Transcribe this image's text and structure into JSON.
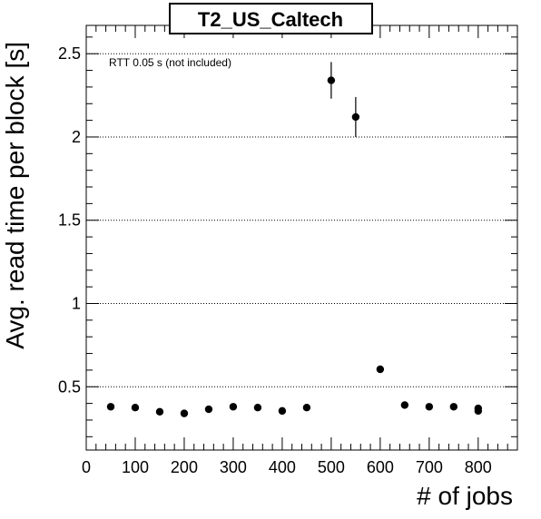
{
  "chart_data": {
    "type": "scatter",
    "title": "T2_US_Caltech",
    "xlabel": "# of jobs",
    "ylabel": "Avg. read time per block [s]",
    "annotation": "RTT 0.05 s (not included)",
    "xlim": [
      0,
      880
    ],
    "ylim": [
      0.12,
      2.67
    ],
    "x_ticks": [
      0,
      100,
      200,
      300,
      400,
      500,
      600,
      700,
      800
    ],
    "x_tick_labels": [
      "0",
      "100",
      "200",
      "300",
      "400",
      "500",
      "600",
      "700",
      "800"
    ],
    "y_ticks": [
      0.5,
      1,
      1.5,
      2,
      2.5
    ],
    "y_tick_labels": [
      "0.5",
      "1",
      "1.5",
      "2",
      "2.5"
    ],
    "grid": {
      "x": false,
      "y": true,
      "style": "dotted"
    },
    "series": [
      {
        "points": [
          {
            "x": 50,
            "y": 0.38,
            "err": 0.0
          },
          {
            "x": 100,
            "y": 0.375,
            "err": 0.0
          },
          {
            "x": 150,
            "y": 0.35,
            "err": 0.0
          },
          {
            "x": 200,
            "y": 0.34,
            "err": 0.0
          },
          {
            "x": 250,
            "y": 0.365,
            "err": 0.0
          },
          {
            "x": 300,
            "y": 0.38,
            "err": 0.0
          },
          {
            "x": 350,
            "y": 0.375,
            "err": 0.0
          },
          {
            "x": 400,
            "y": 0.355,
            "err": 0.0
          },
          {
            "x": 450,
            "y": 0.375,
            "err": 0.0
          },
          {
            "x": 500,
            "y": 2.34,
            "err": 0.11
          },
          {
            "x": 550,
            "y": 2.12,
            "err": 0.12
          },
          {
            "x": 600,
            "y": 0.605,
            "err": 0.0
          },
          {
            "x": 650,
            "y": 0.39,
            "err": 0.0
          },
          {
            "x": 700,
            "y": 0.38,
            "err": 0.0
          },
          {
            "x": 750,
            "y": 0.38,
            "err": 0.0
          },
          {
            "x": 800,
            "y": 0.37,
            "err": 0.0
          },
          {
            "x": 800,
            "y": 0.355,
            "err": 0.0
          }
        ]
      }
    ]
  }
}
